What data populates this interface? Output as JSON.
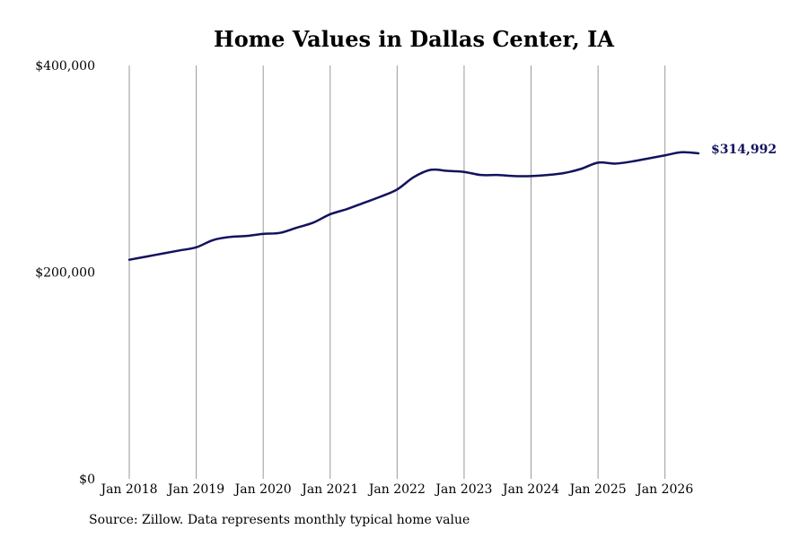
{
  "chart_data": {
    "type": "line",
    "title": "Home Values in Dallas Center, IA",
    "source": "Source: Zillow. Data represents monthly typical home value",
    "ylim": [
      0,
      400000
    ],
    "y_ticks": [
      {
        "value": 0,
        "label": "$0"
      },
      {
        "value": 200000,
        "label": "$200,000"
      },
      {
        "value": 400000,
        "label": "$400,000"
      }
    ],
    "x_ticks": [
      {
        "value": "2018-01",
        "label": "Jan 2018"
      },
      {
        "value": "2019-01",
        "label": "Jan 2019"
      },
      {
        "value": "2020-01",
        "label": "Jan 2020"
      },
      {
        "value": "2021-01",
        "label": "Jan 2021"
      },
      {
        "value": "2022-01",
        "label": "Jan 2022"
      },
      {
        "value": "2023-01",
        "label": "Jan 2023"
      },
      {
        "value": "2024-01",
        "label": "Jan 2024"
      },
      {
        "value": "2025-01",
        "label": "Jan 2025"
      },
      {
        "value": "2026-01",
        "label": "Jan 2026"
      }
    ],
    "xlim": [
      "2018-01",
      "2026-07"
    ],
    "grid": "vertical",
    "line_color": "#12125e",
    "end_label": "$314,992",
    "series": [
      {
        "x": [
          "2018-01",
          "2018-04",
          "2018-07",
          "2018-10",
          "2019-01",
          "2019-04",
          "2019-07",
          "2019-10",
          "2020-01",
          "2020-04",
          "2020-07",
          "2020-10",
          "2021-01",
          "2021-04",
          "2021-07",
          "2021-10",
          "2022-01",
          "2022-04",
          "2022-07",
          "2022-10",
          "2023-01",
          "2023-04",
          "2023-07",
          "2023-10",
          "2024-01",
          "2024-04",
          "2024-07",
          "2024-10",
          "2025-01",
          "2025-04",
          "2025-07",
          "2025-10",
          "2026-01",
          "2026-04",
          "2026-07"
        ],
        "y": [
          212000,
          215000,
          218000,
          221000,
          224000,
          231000,
          234000,
          235000,
          237000,
          238000,
          243000,
          248000,
          256000,
          261000,
          267000,
          273000,
          280000,
          292000,
          299000,
          298000,
          297000,
          294000,
          294000,
          293000,
          293000,
          294000,
          296000,
          300000,
          306000,
          305000,
          307000,
          310000,
          313000,
          316000,
          314992
        ]
      }
    ]
  }
}
